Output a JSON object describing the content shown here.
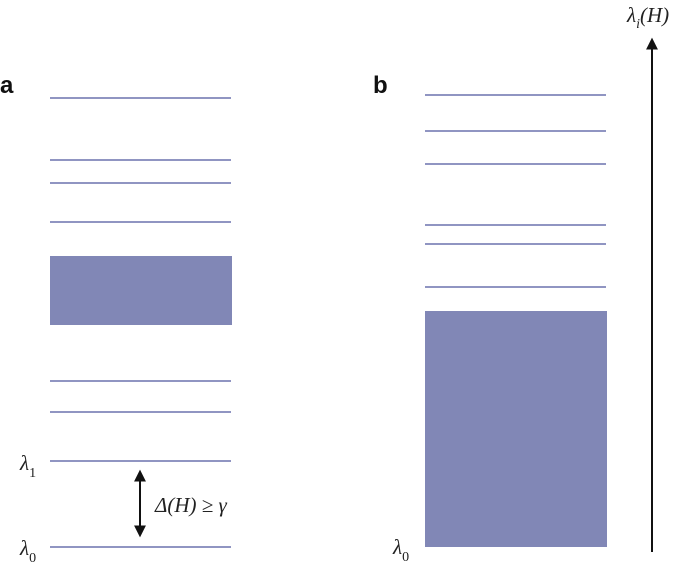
{
  "panel_a": {
    "label": "a",
    "lambda_1": {
      "symbol": "λ",
      "subscript": "1"
    },
    "lambda_0": {
      "symbol": "λ",
      "subscript": "0"
    },
    "gap": "Δ(H) ≥ γ"
  },
  "panel_b": {
    "label": "b",
    "lambda_0": {
      "symbol": "λ",
      "subscript": "0"
    }
  },
  "axis": {
    "symbol": "λ",
    "subscript": "i",
    "argument": "(H)"
  }
}
